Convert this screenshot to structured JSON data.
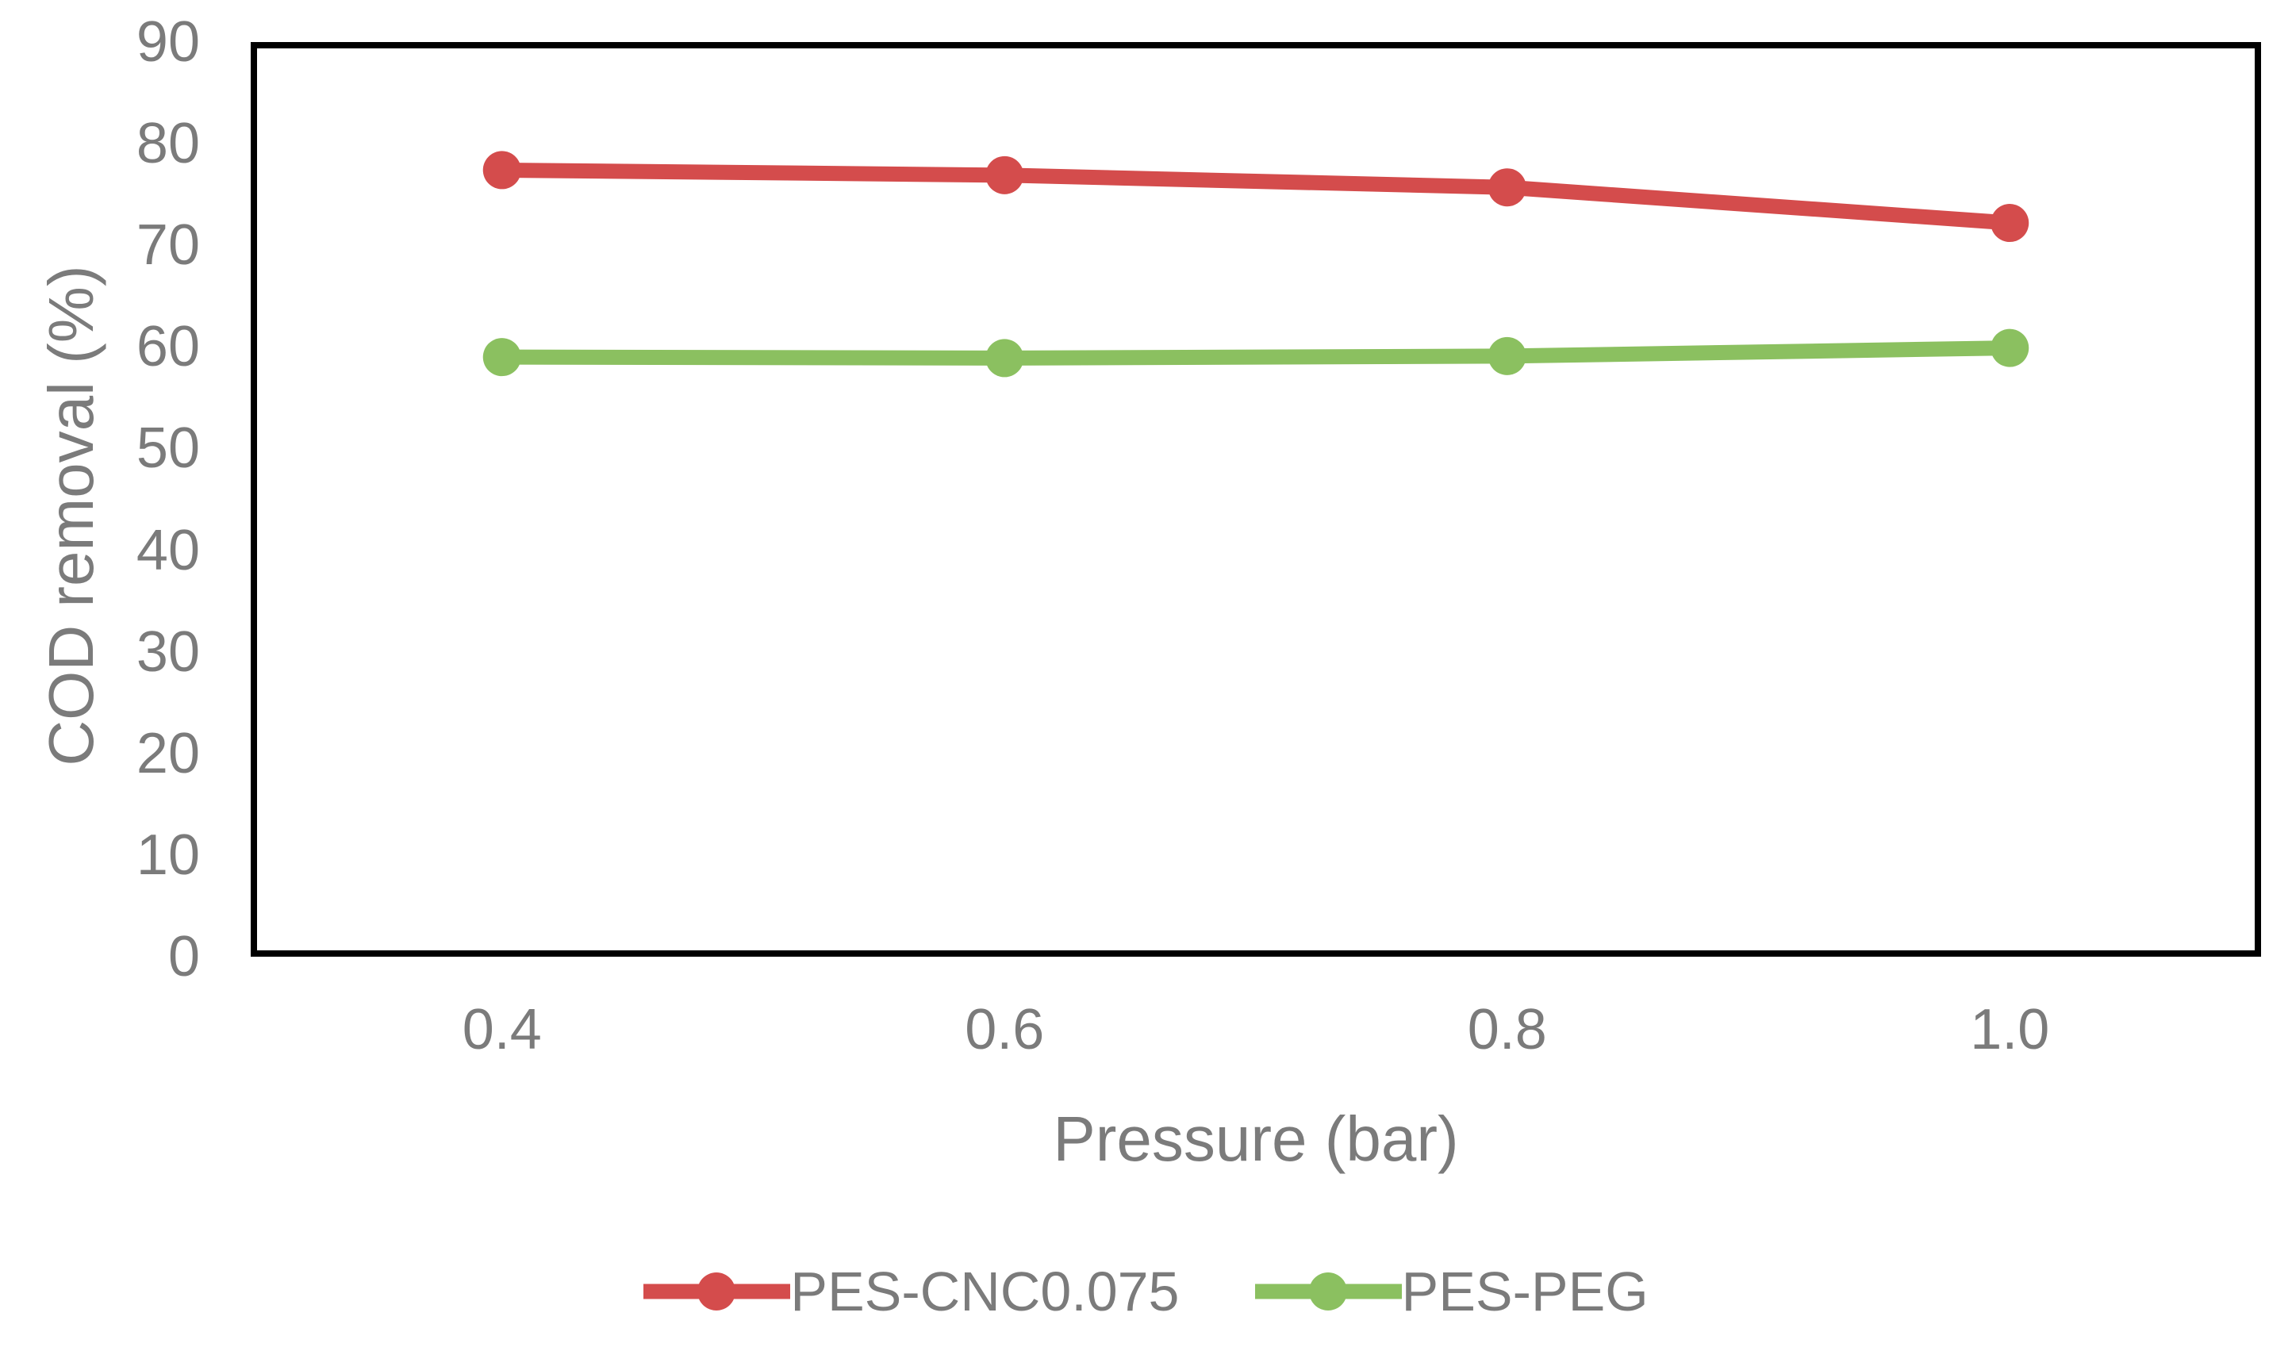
{
  "chart_data": {
    "type": "line",
    "xlabel": "Pressure (bar)",
    "ylabel": "COD removal (%)",
    "categories": [
      "0.4",
      "0.6",
      "0.8",
      "1.0"
    ],
    "x_values": [
      0.4,
      0.6,
      0.8,
      1.0
    ],
    "series": [
      {
        "name": "PES-CNC0.075",
        "color": "#d44c4c",
        "marker": "circle",
        "values": [
          77.4,
          76.9,
          75.7,
          72.2
        ]
      },
      {
        "name": "PES-PEG",
        "color": "#8bc060",
        "marker": "circle",
        "values": [
          59.0,
          58.9,
          59.1,
          59.9
        ]
      }
    ],
    "ylim": [
      0,
      90
    ],
    "y_ticks": [
      90,
      80,
      70,
      60,
      50,
      40,
      30,
      20,
      10,
      0
    ],
    "grid": false,
    "legend_position": "bottom",
    "axis_border_color": "#000000",
    "tick_text_color": "#7b7b7b",
    "line_width": 19,
    "marker_radius": 24
  }
}
